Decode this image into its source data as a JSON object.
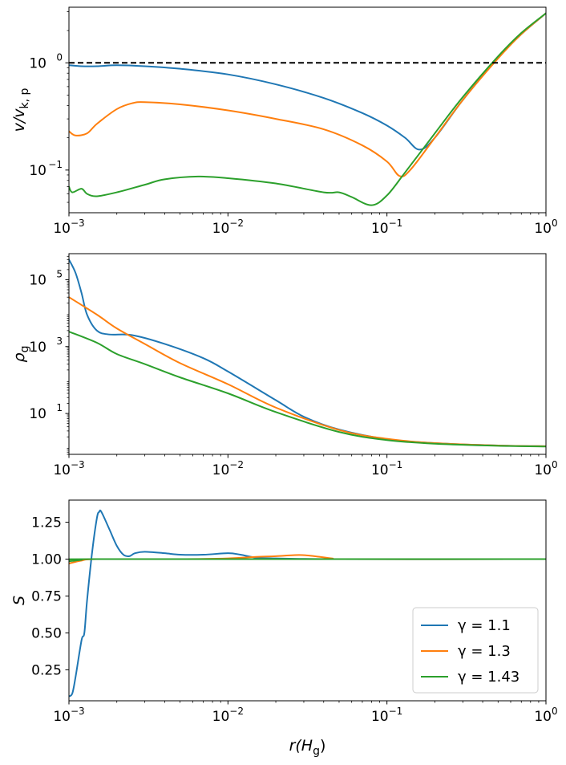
{
  "chart_data": [
    {
      "type": "line",
      "xscale": "log",
      "yscale": "log",
      "xlim": [
        0.001,
        1
      ],
      "ylim": [
        0.04,
        3.3
      ],
      "xticks": [
        {
          "value": 0.001,
          "base": "10",
          "exp": "−3"
        },
        {
          "value": 0.01,
          "base": "10",
          "exp": "−2"
        },
        {
          "value": 0.1,
          "base": "10",
          "exp": "−1"
        },
        {
          "value": 1,
          "base": "10",
          "exp": "0"
        }
      ],
      "yticks": [
        {
          "value": 0.1,
          "base": "10",
          "exp": "−1"
        },
        {
          "value": 1,
          "base": "10",
          "exp": "0"
        }
      ],
      "ylabel": {
        "main": "v/v",
        "sub": "k, p"
      },
      "reference_line": {
        "y": 1,
        "style": "dashed",
        "color": "#000000"
      },
      "series": [
        {
          "name": "γ = 1.1",
          "color": "#1f77b4",
          "points": [
            [
              0.001,
              0.95
            ],
            [
              0.0012,
              0.93
            ],
            [
              0.0015,
              0.93
            ],
            [
              0.002,
              0.95
            ],
            [
              0.003,
              0.93
            ],
            [
              0.005,
              0.88
            ],
            [
              0.01,
              0.78
            ],
            [
              0.02,
              0.63
            ],
            [
              0.04,
              0.47
            ],
            [
              0.07,
              0.34
            ],
            [
              0.1,
              0.26
            ],
            [
              0.13,
              0.2
            ],
            [
              0.16,
              0.155
            ],
            [
              0.2,
              0.2
            ],
            [
              0.3,
              0.45
            ],
            [
              0.5,
              1.12
            ],
            [
              0.7,
              1.85
            ],
            [
              1,
              2.9
            ]
          ]
        },
        {
          "name": "γ = 1.3",
          "color": "#ff7f0e",
          "points": [
            [
              0.001,
              0.23
            ],
            [
              0.0011,
              0.21
            ],
            [
              0.0013,
              0.22
            ],
            [
              0.0015,
              0.27
            ],
            [
              0.002,
              0.37
            ],
            [
              0.0025,
              0.42
            ],
            [
              0.003,
              0.43
            ],
            [
              0.005,
              0.41
            ],
            [
              0.01,
              0.36
            ],
            [
              0.02,
              0.3
            ],
            [
              0.04,
              0.24
            ],
            [
              0.07,
              0.17
            ],
            [
              0.1,
              0.12
            ],
            [
              0.12,
              0.088
            ],
            [
              0.14,
              0.1
            ],
            [
              0.2,
              0.2
            ],
            [
              0.3,
              0.45
            ],
            [
              0.5,
              1.1
            ],
            [
              0.7,
              1.85
            ],
            [
              1,
              2.9
            ]
          ]
        },
        {
          "name": "γ = 1.43",
          "color": "#2ca02c",
          "points": [
            [
              0.001,
              0.07
            ],
            [
              0.00105,
              0.062
            ],
            [
              0.0012,
              0.067
            ],
            [
              0.0013,
              0.06
            ],
            [
              0.0015,
              0.057
            ],
            [
              0.002,
              0.062
            ],
            [
              0.003,
              0.073
            ],
            [
              0.004,
              0.082
            ],
            [
              0.0065,
              0.087
            ],
            [
              0.01,
              0.084
            ],
            [
              0.02,
              0.075
            ],
            [
              0.04,
              0.062
            ],
            [
              0.05,
              0.062
            ],
            [
              0.06,
              0.056
            ],
            [
              0.08,
              0.047
            ],
            [
              0.1,
              0.058
            ],
            [
              0.13,
              0.095
            ],
            [
              0.2,
              0.22
            ],
            [
              0.3,
              0.48
            ],
            [
              0.5,
              1.15
            ],
            [
              0.7,
              1.9
            ],
            [
              1,
              2.9
            ]
          ]
        }
      ]
    },
    {
      "type": "line",
      "xscale": "log",
      "yscale": "log",
      "xlim": [
        0.001,
        1
      ],
      "ylim": [
        0.6,
        600000
      ],
      "xticks": [
        {
          "value": 0.001,
          "base": "10",
          "exp": "−3"
        },
        {
          "value": 0.01,
          "base": "10",
          "exp": "−2"
        },
        {
          "value": 0.1,
          "base": "10",
          "exp": "−1"
        },
        {
          "value": 1,
          "base": "10",
          "exp": "0"
        }
      ],
      "yticks": [
        {
          "value": 10,
          "base": "10",
          "exp": "1"
        },
        {
          "value": 1000,
          "base": "10",
          "exp": "3"
        },
        {
          "value": 100000,
          "base": "10",
          "exp": "5"
        }
      ],
      "ylabel": {
        "main": "ρ",
        "sub": "g"
      },
      "series": [
        {
          "name": "γ = 1.1",
          "color": "#1f77b4",
          "points": [
            [
              0.001,
              400000
            ],
            [
              0.0011,
              160000
            ],
            [
              0.0012,
              40000
            ],
            [
              0.0013,
              9000
            ],
            [
              0.0015,
              3000
            ],
            [
              0.0018,
              2300
            ],
            [
              0.0025,
              2200
            ],
            [
              0.004,
              1200
            ],
            [
              0.007,
              450
            ],
            [
              0.01,
              180
            ],
            [
              0.02,
              25
            ],
            [
              0.03,
              8
            ],
            [
              0.05,
              3.3
            ],
            [
              0.1,
              1.7
            ],
            [
              0.2,
              1.3
            ],
            [
              0.5,
              1.1
            ],
            [
              1,
              1.05
            ]
          ]
        },
        {
          "name": "γ = 1.3",
          "color": "#ff7f0e",
          "points": [
            [
              0.001,
              30000
            ],
            [
              0.0015,
              9000
            ],
            [
              0.002,
              3500
            ],
            [
              0.003,
              1200
            ],
            [
              0.005,
              320
            ],
            [
              0.01,
              75
            ],
            [
              0.02,
              15
            ],
            [
              0.05,
              3.2
            ],
            [
              0.1,
              1.75
            ],
            [
              0.2,
              1.3
            ],
            [
              0.5,
              1.1
            ],
            [
              1,
              1.05
            ]
          ]
        },
        {
          "name": "γ = 1.43",
          "color": "#2ca02c",
          "points": [
            [
              0.001,
              2800
            ],
            [
              0.0015,
              1300
            ],
            [
              0.002,
              600
            ],
            [
              0.003,
              300
            ],
            [
              0.005,
              120
            ],
            [
              0.01,
              40
            ],
            [
              0.02,
              11
            ],
            [
              0.05,
              2.8
            ],
            [
              0.1,
              1.6
            ],
            [
              0.2,
              1.25
            ],
            [
              0.5,
              1.08
            ],
            [
              1,
              1.03
            ]
          ]
        }
      ]
    },
    {
      "type": "line",
      "xscale": "log",
      "yscale": "linear",
      "xlim": [
        0.001,
        1
      ],
      "ylim": [
        0.04,
        1.4
      ],
      "xticks": [
        {
          "value": 0.001,
          "base": "10",
          "exp": "−3"
        },
        {
          "value": 0.01,
          "base": "10",
          "exp": "−2"
        },
        {
          "value": 0.1,
          "base": "10",
          "exp": "−1"
        },
        {
          "value": 1,
          "base": "10",
          "exp": "0"
        }
      ],
      "yticks": [
        {
          "value": 0.25,
          "label": "0.25"
        },
        {
          "value": 0.5,
          "label": "0.50"
        },
        {
          "value": 0.75,
          "label": "0.75"
        },
        {
          "value": 1.0,
          "label": "1.00"
        },
        {
          "value": 1.25,
          "label": "1.25"
        }
      ],
      "ylabel": {
        "main": "S",
        "sub": ""
      },
      "xlabel": {
        "main": "r(H",
        "sub": "g",
        "tail": ")"
      },
      "legend": {
        "location": "lower right"
      },
      "series": [
        {
          "name": "γ = 1.1",
          "color": "#1f77b4",
          "points": [
            [
              0.001,
              0.07
            ],
            [
              0.00105,
              0.09
            ],
            [
              0.0011,
              0.2
            ],
            [
              0.0012,
              0.45
            ],
            [
              0.00125,
              0.5
            ],
            [
              0.0013,
              0.72
            ],
            [
              0.0014,
              1.05
            ],
            [
              0.0015,
              1.28
            ],
            [
              0.00155,
              1.32
            ],
            [
              0.0016,
              1.32
            ],
            [
              0.0018,
              1.2
            ],
            [
              0.002,
              1.09
            ],
            [
              0.0022,
              1.03
            ],
            [
              0.0024,
              1.02
            ],
            [
              0.0026,
              1.04
            ],
            [
              0.003,
              1.05
            ],
            [
              0.004,
              1.04
            ],
            [
              0.005,
              1.03
            ],
            [
              0.007,
              1.03
            ],
            [
              0.01,
              1.04
            ],
            [
              0.012,
              1.03
            ],
            [
              0.015,
              1.01
            ],
            [
              0.02,
              1.005
            ],
            [
              0.05,
              1.0
            ],
            [
              1,
              1.0
            ]
          ]
        },
        {
          "name": "γ = 1.3",
          "color": "#ff7f0e",
          "points": [
            [
              0.001,
              0.97
            ],
            [
              0.0012,
              0.99
            ],
            [
              0.0015,
              1.0
            ],
            [
              0.005,
              1.0
            ],
            [
              0.01,
              1.005
            ],
            [
              0.015,
              1.015
            ],
            [
              0.02,
              1.02
            ],
            [
              0.028,
              1.028
            ],
            [
              0.035,
              1.02
            ],
            [
              0.045,
              1.005
            ],
            [
              0.06,
              1.0
            ],
            [
              1,
              1.0
            ]
          ]
        },
        {
          "name": "γ = 1.43",
          "color": "#2ca02c",
          "points": [
            [
              0.001,
              0.985
            ],
            [
              0.0012,
              0.995
            ],
            [
              0.0015,
              1.0
            ],
            [
              1,
              1.0
            ]
          ]
        }
      ]
    }
  ]
}
